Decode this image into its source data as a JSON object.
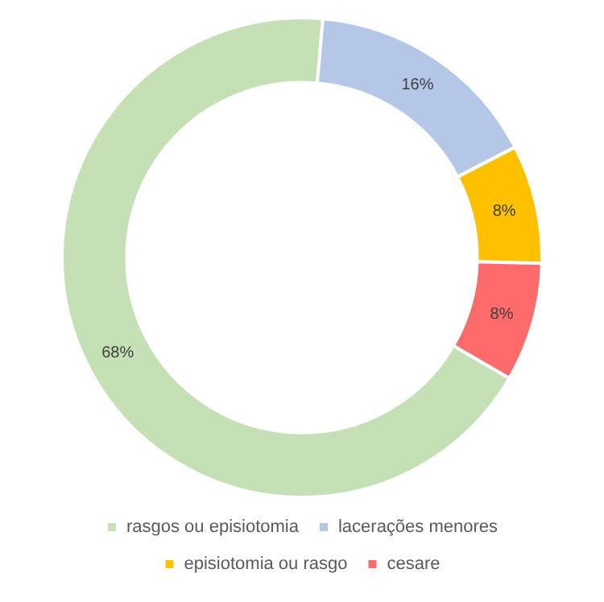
{
  "chart_data": {
    "type": "donut",
    "categories": [
      "rasgos ou episiotomia",
      "lacerações menores",
      "episiotomia ou rasgo",
      "cesare"
    ],
    "values": [
      68,
      16,
      8,
      8
    ],
    "colors": [
      "#c5e0b4",
      "#b4c7e7",
      "#ffc000",
      "#ff6b6b"
    ],
    "value_labels": [
      "68%",
      "16%",
      "8%",
      "8%"
    ],
    "legend": "bottom"
  }
}
